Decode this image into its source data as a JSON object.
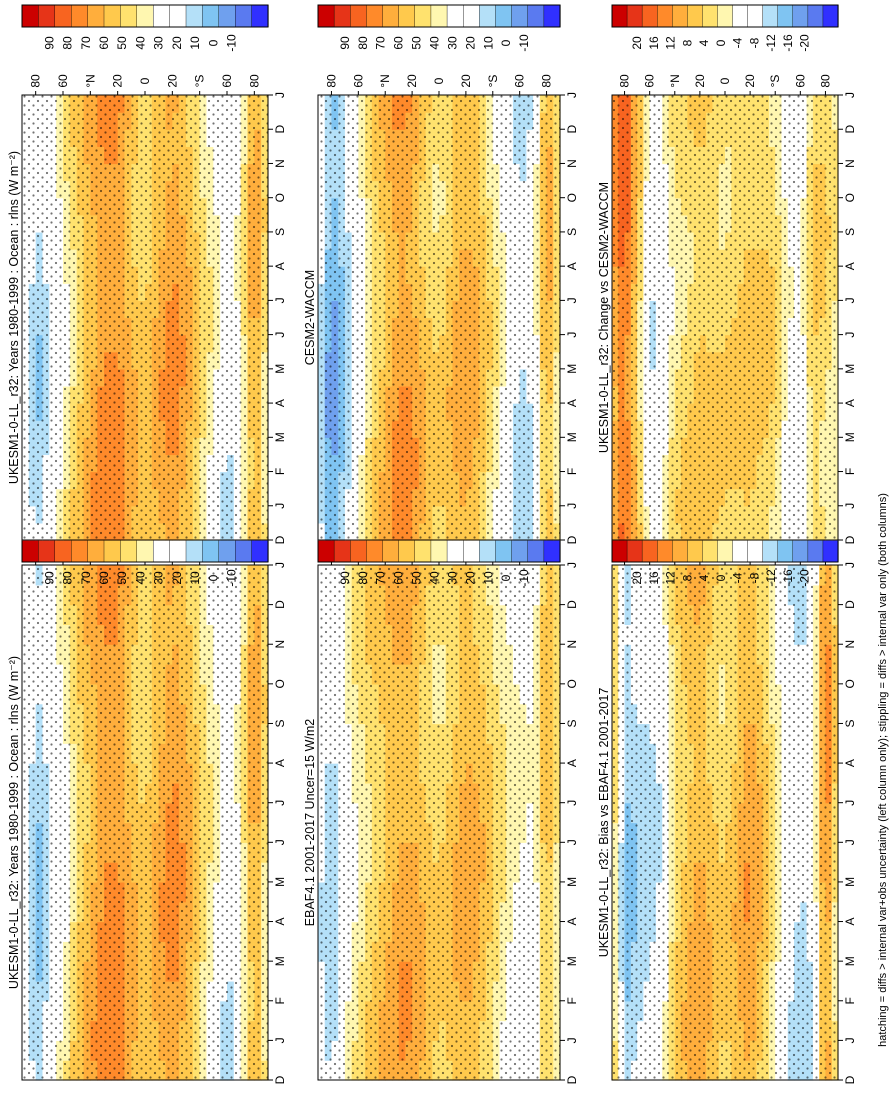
{
  "chart_data": [
    {
      "type": "heatmap",
      "id": "p1",
      "title": "UKESM1-0-LL_r32: Years 1980-1999 : Ocean : rlns (W m⁻²)",
      "xlabel": "",
      "ylabel": "",
      "x_ticks": [
        "D",
        "J",
        "F",
        "M",
        "A",
        "M",
        "J",
        "J",
        "A",
        "S",
        "O",
        "N",
        "D",
        "J"
      ],
      "y_ticks": [
        "80",
        "60",
        "°N",
        "20",
        "0",
        "20",
        "°S",
        "60",
        "80"
      ],
      "value_range": [
        -10,
        100
      ],
      "latitude_profile": [
        {
          "lat": 90,
          "value": 40
        },
        {
          "lat": 80,
          "value": 20
        },
        {
          "lat": 70,
          "value": 30
        },
        {
          "lat": 60,
          "value": 40
        },
        {
          "lat": 50,
          "value": 55
        },
        {
          "lat": 40,
          "value": 63
        },
        {
          "lat": 30,
          "value": 72
        },
        {
          "lat": 20,
          "value": 72
        },
        {
          "lat": 10,
          "value": 62
        },
        {
          "lat": 0,
          "value": 55
        },
        {
          "lat": -10,
          "value": 64
        },
        {
          "lat": -20,
          "value": 70
        },
        {
          "lat": -30,
          "value": 64
        },
        {
          "lat": -40,
          "value": 52
        },
        {
          "lat": -50,
          "value": 42
        },
        {
          "lat": -60,
          "value": 28
        },
        {
          "lat": -70,
          "value": 40
        },
        {
          "lat": -80,
          "value": 68
        },
        {
          "lat": -90,
          "value": 45
        }
      ]
    },
    {
      "type": "heatmap",
      "id": "p2",
      "title": "EBAF4.1 2001-2017 Uncer=15 W/m2",
      "xlabel": "",
      "ylabel": "",
      "x_ticks": [
        "D",
        "J",
        "F",
        "M",
        "A",
        "M",
        "J",
        "J",
        "A",
        "S",
        "O",
        "N",
        "D",
        "J"
      ],
      "y_ticks": [
        "80",
        "60",
        "°N",
        "20",
        "0",
        "20",
        "°S",
        "60",
        "80"
      ],
      "value_range": [
        -10,
        100
      ],
      "latitude_profile": [
        {
          "lat": 90,
          "value": 35
        },
        {
          "lat": 80,
          "value": 22
        },
        {
          "lat": 70,
          "value": 38
        },
        {
          "lat": 60,
          "value": 48
        },
        {
          "lat": 50,
          "value": 55
        },
        {
          "lat": 40,
          "value": 60
        },
        {
          "lat": 30,
          "value": 66
        },
        {
          "lat": 20,
          "value": 66
        },
        {
          "lat": 10,
          "value": 58
        },
        {
          "lat": 0,
          "value": 52
        },
        {
          "lat": -10,
          "value": 58
        },
        {
          "lat": -20,
          "value": 64
        },
        {
          "lat": -30,
          "value": 60
        },
        {
          "lat": -40,
          "value": 52
        },
        {
          "lat": -50,
          "value": 44
        },
        {
          "lat": -60,
          "value": 38
        },
        {
          "lat": -70,
          "value": 36
        },
        {
          "lat": -80,
          "value": 62
        },
        {
          "lat": -90,
          "value": 45
        }
      ]
    },
    {
      "type": "heatmap",
      "id": "p3",
      "title": "UKESM1-0-LL_r32: Bias vs EBAF4.1 2001-2017",
      "xlabel": "",
      "ylabel": "",
      "x_ticks": [
        "D",
        "J",
        "F",
        "M",
        "A",
        "M",
        "J",
        "J",
        "A",
        "S",
        "O",
        "N",
        "D",
        "J"
      ],
      "y_ticks": [
        "80",
        "60",
        "°N",
        "20",
        "0",
        "20",
        "°S",
        "60",
        "80"
      ],
      "value_range": [
        -22,
        22
      ],
      "latitude_profile": [
        {
          "lat": 90,
          "value": 6
        },
        {
          "lat": 80,
          "value": -10
        },
        {
          "lat": 70,
          "value": -8
        },
        {
          "lat": 60,
          "value": -7
        },
        {
          "lat": 50,
          "value": -5
        },
        {
          "lat": 40,
          "value": 3
        },
        {
          "lat": 30,
          "value": 6
        },
        {
          "lat": 20,
          "value": 8
        },
        {
          "lat": 10,
          "value": 5
        },
        {
          "lat": 0,
          "value": 3
        },
        {
          "lat": -10,
          "value": 6
        },
        {
          "lat": -20,
          "value": 9
        },
        {
          "lat": -30,
          "value": 5
        },
        {
          "lat": -40,
          "value": 0
        },
        {
          "lat": -50,
          "value": -5
        },
        {
          "lat": -60,
          "value": -8
        },
        {
          "lat": -70,
          "value": -5
        },
        {
          "lat": -80,
          "value": 12
        },
        {
          "lat": -90,
          "value": 0
        }
      ]
    },
    {
      "type": "heatmap",
      "id": "p4",
      "title": "UKESM1-0-LL_r32: Years 1980-1999 : Ocean : rlns (W m⁻²)",
      "xlabel": "",
      "ylabel": "",
      "x_ticks": [
        "D",
        "J",
        "F",
        "M",
        "A",
        "M",
        "J",
        "J",
        "A",
        "S",
        "O",
        "N",
        "D",
        "J"
      ],
      "y_ticks": [
        "80",
        "60",
        "°N",
        "20",
        "0",
        "20",
        "°S",
        "60",
        "80"
      ],
      "value_range": [
        -10,
        100
      ],
      "latitude_profile": [
        {
          "lat": 90,
          "value": 40
        },
        {
          "lat": 80,
          "value": 22
        },
        {
          "lat": 70,
          "value": 30
        },
        {
          "lat": 60,
          "value": 42
        },
        {
          "lat": 50,
          "value": 55
        },
        {
          "lat": 40,
          "value": 64
        },
        {
          "lat": 30,
          "value": 72
        },
        {
          "lat": 20,
          "value": 72
        },
        {
          "lat": 10,
          "value": 62
        },
        {
          "lat": 0,
          "value": 55
        },
        {
          "lat": -10,
          "value": 64
        },
        {
          "lat": -20,
          "value": 70
        },
        {
          "lat": -30,
          "value": 64
        },
        {
          "lat": -40,
          "value": 52
        },
        {
          "lat": -50,
          "value": 42
        },
        {
          "lat": -60,
          "value": 28
        },
        {
          "lat": -70,
          "value": 40
        },
        {
          "lat": -80,
          "value": 68
        },
        {
          "lat": -90,
          "value": 45
        }
      ]
    },
    {
      "type": "heatmap",
      "id": "p5",
      "title": "CESM2-WACCM",
      "xlabel": "",
      "ylabel": "",
      "x_ticks": [
        "D",
        "J",
        "F",
        "M",
        "A",
        "M",
        "J",
        "J",
        "A",
        "S",
        "O",
        "N",
        "D",
        "J"
      ],
      "y_ticks": [
        "80",
        "60",
        "°N",
        "20",
        "0",
        "20",
        "°S",
        "60",
        "80"
      ],
      "value_range": [
        -10,
        100
      ],
      "latitude_profile": [
        {
          "lat": 90,
          "value": 30
        },
        {
          "lat": 80,
          "value": 12
        },
        {
          "lat": 70,
          "value": 22
        },
        {
          "lat": 60,
          "value": 36
        },
        {
          "lat": 50,
          "value": 52
        },
        {
          "lat": 40,
          "value": 62
        },
        {
          "lat": 30,
          "value": 70
        },
        {
          "lat": 20,
          "value": 68
        },
        {
          "lat": 10,
          "value": 58
        },
        {
          "lat": 0,
          "value": 52
        },
        {
          "lat": -10,
          "value": 60
        },
        {
          "lat": -20,
          "value": 66
        },
        {
          "lat": -30,
          "value": 60
        },
        {
          "lat": -40,
          "value": 48
        },
        {
          "lat": -50,
          "value": 36
        },
        {
          "lat": -60,
          "value": 24
        },
        {
          "lat": -70,
          "value": 30
        },
        {
          "lat": -80,
          "value": 66
        },
        {
          "lat": -90,
          "value": 45
        }
      ]
    },
    {
      "type": "heatmap",
      "id": "p6",
      "title": "UKESM1-0-LL_r32: Change vs CESM2-WACCM",
      "xlabel": "",
      "ylabel": "",
      "x_ticks": [
        "D",
        "J",
        "F",
        "M",
        "A",
        "M",
        "J",
        "J",
        "A",
        "S",
        "O",
        "N",
        "D",
        "J"
      ],
      "y_ticks": [
        "80",
        "60",
        "°N",
        "20",
        "0",
        "20",
        "°S",
        "60",
        "80"
      ],
      "value_range": [
        -22,
        22
      ],
      "latitude_profile": [
        {
          "lat": 90,
          "value": 8
        },
        {
          "lat": 80,
          "value": 14
        },
        {
          "lat": 70,
          "value": 6
        },
        {
          "lat": 60,
          "value": -6
        },
        {
          "lat": 50,
          "value": -4
        },
        {
          "lat": 40,
          "value": 2
        },
        {
          "lat": 30,
          "value": 3
        },
        {
          "lat": 20,
          "value": 5
        },
        {
          "lat": 10,
          "value": 4
        },
        {
          "lat": 0,
          "value": 3
        },
        {
          "lat": -10,
          "value": 4
        },
        {
          "lat": -20,
          "value": 5
        },
        {
          "lat": -30,
          "value": 4
        },
        {
          "lat": -40,
          "value": 3
        },
        {
          "lat": -50,
          "value": -3
        },
        {
          "lat": -60,
          "value": -5
        },
        {
          "lat": -70,
          "value": 4
        },
        {
          "lat": -80,
          "value": 3
        },
        {
          "lat": -90,
          "value": 0
        }
      ]
    }
  ],
  "colorbars": [
    {
      "id": "cb1",
      "labels": [
        "90",
        "80",
        "70",
        "60",
        "50",
        "40",
        "30",
        "20",
        "10",
        "0",
        "-10"
      ]
    },
    {
      "id": "cb2",
      "labels": [
        "90",
        "80",
        "70",
        "60",
        "50",
        "40",
        "30",
        "20",
        "10",
        "0",
        "-10"
      ]
    },
    {
      "id": "cb3",
      "labels": [
        "20",
        "16",
        "12",
        "8",
        "4",
        "0",
        "-4",
        "-8",
        "-12",
        "-16",
        "-20"
      ]
    },
    {
      "id": "cb4",
      "labels": [
        "90",
        "80",
        "70",
        "60",
        "50",
        "40",
        "30",
        "20",
        "10",
        "0",
        "-10"
      ]
    },
    {
      "id": "cb5",
      "labels": [
        "90",
        "80",
        "70",
        "60",
        "50",
        "40",
        "30",
        "20",
        "10",
        "0",
        "-10"
      ]
    },
    {
      "id": "cb6",
      "labels": [
        "20",
        "16",
        "12",
        "8",
        "4",
        "0",
        "-4",
        "-8",
        "-12",
        "-16",
        "-20"
      ]
    }
  ],
  "colors": {
    "palette": [
      "#3030ff",
      "#5a7af0",
      "#6fa0ee",
      "#7fc4f2",
      "#b4e0f8",
      "#ffffff",
      "#ffffff",
      "#fff7b0",
      "#ffe26e",
      "#ffc94c",
      "#ffae3c",
      "#ff8a2a",
      "#f86420",
      "#e63418",
      "#cc0000"
    ],
    "background": "#ffffff",
    "stipple": "#000000"
  },
  "footnote": "hatching = diffs > internal var+obs uncertainty (left column only); stippling = diffs > internal var only (both columns)"
}
